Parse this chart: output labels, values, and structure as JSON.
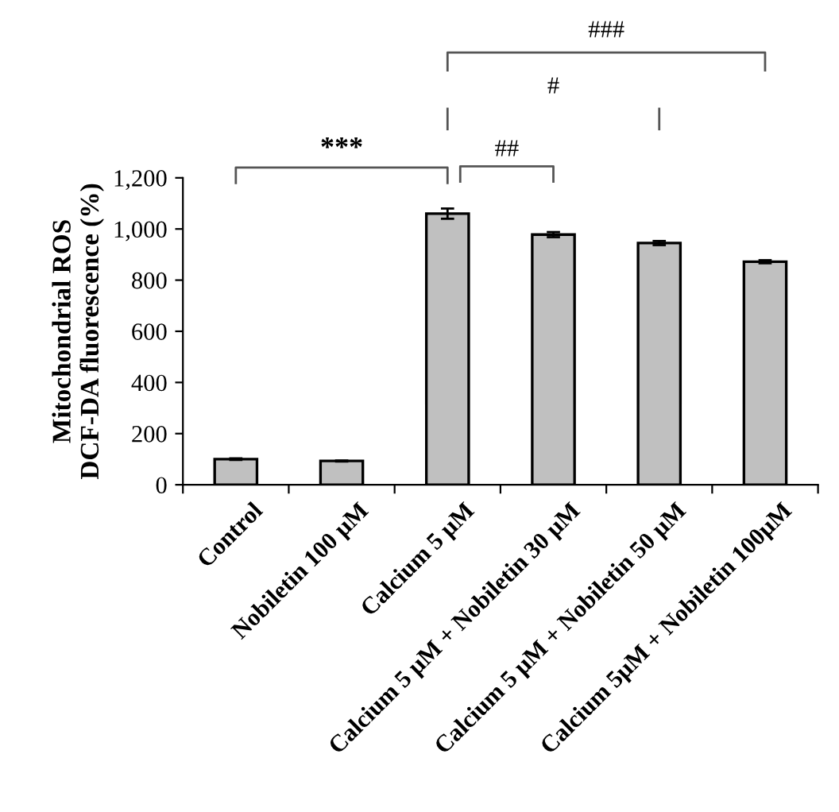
{
  "chart_data": {
    "type": "bar",
    "ylabel": "Mitochondrial ROS\nDCF-DA fluorescence (%)",
    "categories": [
      "Control",
      "Nobiletin 100 µM",
      "Calcium 5 µM",
      "Calcium 5 µM + Nobiletin 30 µM",
      "Calcium 5 µM + Nobiletin 50 µM",
      "Calcium 5µM + Nobiletin 100µM"
    ],
    "values": [
      100,
      93,
      1060,
      978,
      945,
      872
    ],
    "errors": [
      3,
      2,
      20,
      10,
      8,
      6
    ],
    "color": "#c0c0c0",
    "ylim": [
      0,
      1200
    ],
    "yticks": [
      0,
      {
        "value": 200,
        "label": "200"
      },
      {
        "value": 400,
        "label": "400"
      },
      {
        "value": 600,
        "label": "600"
      },
      {
        "value": 800,
        "label": "800"
      },
      {
        "value": 1000,
        "label": "1,000"
      },
      {
        "value": 1200,
        "label": "1,200"
      }
    ],
    "grid": false,
    "legend": false,
    "annotations": [
      "***",
      "##",
      "#",
      "###"
    ]
  }
}
